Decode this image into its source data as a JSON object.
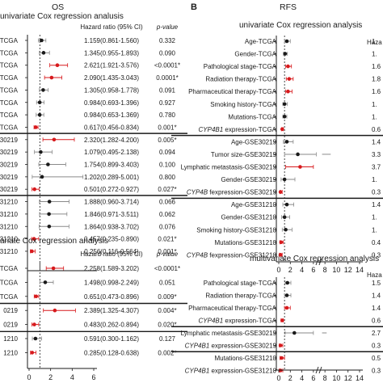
{
  "panel_letters": {
    "b": "B"
  },
  "panel_titles": {
    "os": "OS",
    "rfs": "RFS"
  },
  "colors": {
    "highlight": "#d7191c",
    "ink": "#1a1a1a",
    "ci": "#8a8a8a"
  },
  "chart_data": [
    {
      "type": "forest",
      "title": "univariate Cox regression analusis",
      "column_headers": {
        "hr": "Hazard ratio (95% CI)",
        "p": "p-value"
      },
      "xlim": [
        0,
        6
      ],
      "xticks": [],
      "rows": [
        {
          "label": "TCGA",
          "hr": 1.159,
          "lo": 0.861,
          "hi": 1.56,
          "hr_text": "1.159(0.861-1.560)",
          "p_text": "0.332",
          "sig": false
        },
        {
          "label": "TCGA",
          "hr": 1.345,
          "lo": 0.955,
          "hi": 1.893,
          "hr_text": "1.345(0.955-1.893)",
          "p_text": "0.090",
          "sig": false
        },
        {
          "label": "TCGA",
          "hr": 2.621,
          "lo": 1.921,
          "hi": 3.576,
          "hr_text": "2.621(1.921-3.576)",
          "p_text": "<0.0001*",
          "sig": true
        },
        {
          "label": "TCGA",
          "hr": 2.09,
          "lo": 1.435,
          "hi": 3.043,
          "hr_text": "2.090(1.435-3.043)",
          "p_text": "0.0001*",
          "sig": true
        },
        {
          "label": "TCGA",
          "hr": 1.305,
          "lo": 0.958,
          "hi": 1.778,
          "hr_text": "1.305(0.958-1.778)",
          "p_text": "0.091",
          "sig": false
        },
        {
          "label": "TCGA",
          "hr": 0.984,
          "lo": 0.693,
          "hi": 1.396,
          "hr_text": "0.984(0.693-1.396)",
          "p_text": "0.927",
          "sig": false
        },
        {
          "label": "TCGA",
          "hr": 0.984,
          "lo": 0.653,
          "hi": 1.369,
          "hr_text": "0.984(0.653-1.369)",
          "p_text": "0.780",
          "sig": false
        },
        {
          "label": "TCGA",
          "hr": 0.617,
          "lo": 0.456,
          "hi": 0.834,
          "hr_text": "0.617(0.456-0.834)",
          "p_text": "0.001*",
          "sig": true
        },
        {
          "label": "30219",
          "hr": 2.32,
          "lo": 1.282,
          "hi": 4.2,
          "hr_text": "2.320(1.282-4.200)",
          "p_text": "0.005*",
          "sig": true
        },
        {
          "label": "30219",
          "hr": 1.079,
          "lo": 0.495,
          "hi": 2.138,
          "hr_text": "1.079(0.495-2.138)",
          "p_text": "0.094",
          "sig": false
        },
        {
          "label": "30219",
          "hr": 1.754,
          "lo": 0.899,
          "hi": 3.403,
          "hr_text": "1.754(0.899-3.403)",
          "p_text": "0.100",
          "sig": false
        },
        {
          "label": "30219",
          "hr": 1.202,
          "lo": 0.289,
          "hi": 5.001,
          "hr_text": "1.202(0.289-5.001)",
          "p_text": "0.800",
          "sig": false
        },
        {
          "label": "30219",
          "hr": 0.501,
          "lo": 0.272,
          "hi": 0.927,
          "hr_text": "0.501(0.272-0.927)",
          "p_text": "0.027*",
          "sig": true
        },
        {
          "label": "31210",
          "hr": 1.888,
          "lo": 0.96,
          "hi": 3.714,
          "hr_text": "1.888(0.960-3.714)",
          "p_text": "0.066",
          "sig": false
        },
        {
          "label": "31210",
          "hr": 1.846,
          "lo": 0.971,
          "hi": 3.511,
          "hr_text": "1.846(0.971-3.511)",
          "p_text": "0.062",
          "sig": false
        },
        {
          "label": "31210",
          "hr": 1.864,
          "lo": 0.938,
          "hi": 3.702,
          "hr_text": "1.864(0.938-3.702)",
          "p_text": "0.076",
          "sig": false
        },
        {
          "label": "31210",
          "hr": 0.457,
          "lo": 0.235,
          "hi": 0.89,
          "hr_text": "0.457(0.235-0.890)",
          "p_text": "0.021*",
          "sig": true
        },
        {
          "label": "31210",
          "hr": 0.256,
          "lo": 0.116,
          "hi": 0.564,
          "hr_text": "0.256(0.116-0.564)",
          "p_text": "0.001*",
          "sig": true
        }
      ]
    },
    {
      "type": "forest",
      "title": "ariate Cox regression analysis",
      "column_headers": {
        "hr": "Hazard ratio (95% CI)",
        "p": "p-value"
      },
      "xlim": [
        0,
        6
      ],
      "xticks": [
        0,
        2,
        4,
        6
      ],
      "rows": [
        {
          "label": "TCGA",
          "hr": 2.258,
          "lo": 1.589,
          "hi": 3.202,
          "hr_text": "2.258(1.589-3.202)",
          "p_text": "<0.0001*",
          "sig": true
        },
        {
          "label": "TCGA",
          "hr": 1.498,
          "lo": 0.998,
          "hi": 2.249,
          "hr_text": "1.498(0.998-2.249)",
          "p_text": "0.051",
          "sig": false
        },
        {
          "label": "TCGA",
          "hr": 0.651,
          "lo": 0.473,
          "hi": 0.896,
          "hr_text": "0.651(0.473-0.896)",
          "p_text": "0.009*",
          "sig": true
        },
        {
          "label": "0219",
          "hr": 2.389,
          "lo": 1.325,
          "hi": 4.307,
          "hr_text": "2.389(1.325-4.307)",
          "p_text": "0.004*",
          "sig": true
        },
        {
          "label": "0219",
          "hr": 0.483,
          "lo": 0.262,
          "hi": 0.894,
          "hr_text": "0.483(0.262-0.894)",
          "p_text": "0.020*",
          "sig": true
        },
        {
          "label": "1210",
          "hr": 0.591,
          "lo": 0.3,
          "hi": 1.162,
          "hr_text": "0.591(0.300-1.162)",
          "p_text": "0.127",
          "sig": false
        },
        {
          "label": "1210",
          "hr": 0.285,
          "lo": 0.128,
          "hi": 0.638,
          "hr_text": "0.285(0.128-0.638)",
          "p_text": "0.002*",
          "sig": true
        }
      ]
    },
    {
      "type": "forest",
      "title": "univariate Cox regression analysis",
      "hr_col_header": "Haza",
      "xlim": [
        0,
        14
      ],
      "xticks": [
        0,
        2,
        4,
        6,
        8,
        10,
        12,
        14
      ],
      "rows": [
        {
          "label": "Age-TCGA",
          "hr": 1.4,
          "lo": 1.0,
          "hi": 2.0,
          "value_text": "1.",
          "sig": false
        },
        {
          "label": "Gender-TCGA",
          "hr": 1.1,
          "lo": 0.8,
          "hi": 1.5,
          "value_text": "1.",
          "sig": false
        },
        {
          "label": "Pathological stage-TCGA",
          "hr": 1.6,
          "lo": 1.2,
          "hi": 2.2,
          "value_text": "1.6",
          "sig": true
        },
        {
          "label": "Radiation therapy-TCGA",
          "hr": 1.8,
          "lo": 1.3,
          "hi": 2.5,
          "value_text": "1.8",
          "sig": true
        },
        {
          "label": "Pharmaceutical therapy-TCGA",
          "hr": 1.6,
          "lo": 1.2,
          "hi": 2.3,
          "value_text": "1.6",
          "sig": true
        },
        {
          "label": "Smoking history-TCGA",
          "hr": 1.0,
          "lo": 0.7,
          "hi": 1.5,
          "value_text": "1.",
          "sig": false
        },
        {
          "label": "Mutations-TCGA",
          "hr": 1.0,
          "lo": 0.7,
          "hi": 1.4,
          "value_text": "1.",
          "sig": false
        },
        {
          "label": "CYP4B1 expression-TCGA",
          "label_italic": "CYP4B1",
          "label_rest": " expression-TCGA",
          "hr": 0.6,
          "lo": 0.5,
          "hi": 0.8,
          "value_text": "0.6",
          "sig": true
        },
        {
          "label": "Age-GSE30219",
          "hr": 1.4,
          "lo": 0.8,
          "hi": 2.5,
          "value_text": "1.4",
          "sig": false
        },
        {
          "label": "Tumor size-GSE30219",
          "hr": 3.3,
          "lo": 1.0,
          "hi": 6.5,
          "value_text": "3.3",
          "sig": false,
          "break_segment": [
            7.5,
            9.0
          ]
        },
        {
          "label": "Lymphatic metastasis-GSE30219",
          "hr": 3.7,
          "lo": 1.2,
          "hi": 6.0,
          "value_text": "3.7",
          "sig": true
        },
        {
          "label": "Gender-GSE30219",
          "hr": 1.0,
          "lo": 0.4,
          "hi": 2.8,
          "value_text": "1.",
          "sig": false
        },
        {
          "label": "CYP4B fexpression-GSE30219",
          "label_italic": "CYP4B",
          "label_rest": " fexpression-GSE30219",
          "hr": 0.3,
          "lo": 0.2,
          "hi": 0.6,
          "value_text": "0.3",
          "sig": true
        },
        {
          "label": "Age-GSE31210",
          "hr": 1.4,
          "lo": 0.7,
          "hi": 2.6,
          "value_text": "1.4",
          "sig": false
        },
        {
          "label": "Gender-GSE31210",
          "hr": 1.0,
          "lo": 0.5,
          "hi": 1.9,
          "value_text": "1.",
          "sig": false
        },
        {
          "label": "Smoking history-GSE31210",
          "hr": 1.2,
          "lo": 0.6,
          "hi": 2.3,
          "value_text": "1.",
          "sig": false
        },
        {
          "label": "Mutations-GSE31210",
          "hr": 0.4,
          "lo": 0.2,
          "hi": 0.8,
          "value_text": "0.4",
          "sig": true
        },
        {
          "label": "CYP4B fexpression-GSE31210",
          "label_italic": "CYP4B",
          "label_rest": " fexpression-GSE31210",
          "hr": 0.3,
          "lo": 0.1,
          "hi": 0.6,
          "value_text": "0.3",
          "sig": true
        }
      ]
    },
    {
      "type": "forest",
      "title": "multivariate Cox regression analysis",
      "hr_col_header": "Haza",
      "xlim": [
        0,
        14
      ],
      "xticks": [
        0,
        2,
        4,
        6,
        8,
        10,
        12,
        14
      ],
      "rows": [
        {
          "label": "Pathological stage-TCGA",
          "hr": 1.5,
          "lo": 1.1,
          "hi": 2.1,
          "value_text": "1.5",
          "sig": false
        },
        {
          "label": "Radiation therapy-TCGA",
          "hr": 1.4,
          "lo": 1.0,
          "hi": 2.1,
          "value_text": "1.4",
          "sig": false
        },
        {
          "label": "Pharmaceutical therapy-TCGA",
          "hr": 1.4,
          "lo": 1.0,
          "hi": 2.0,
          "value_text": "1.4",
          "sig": true
        },
        {
          "label": "CYP4B1 expression-TCGA",
          "label_italic": "CYP4B1",
          "label_rest": " expression-TCGA",
          "hr": 0.6,
          "lo": 0.4,
          "hi": 0.8,
          "value_text": "0.6",
          "sig": true
        },
        {
          "label": "Lymphatic metastasis-GSE30219",
          "hr": 2.7,
          "lo": 1.1,
          "hi": 6.0,
          "value_text": "2.7",
          "sig": false,
          "break_segment": [
            7.5,
            8.3
          ]
        },
        {
          "label": "CYP4B1 expression-GSE30219",
          "label_italic": "CYP4B1",
          "label_rest": " expression-GSE30219",
          "hr": 0.3,
          "lo": 0.1,
          "hi": 0.7,
          "value_text": "0.3",
          "sig": true
        },
        {
          "label": "Mutations-GSE31210",
          "hr": 0.5,
          "lo": 0.2,
          "hi": 1.0,
          "value_text": "0.5",
          "sig": true
        },
        {
          "label": "CYP4B1 expression-GSE31210",
          "label_italic": "CYP4B1",
          "label_rest": " expression-GSE31210",
          "hr": 0.3,
          "lo": 0.1,
          "hi": 0.7,
          "value_text": "0.3",
          "sig": true
        }
      ]
    }
  ]
}
